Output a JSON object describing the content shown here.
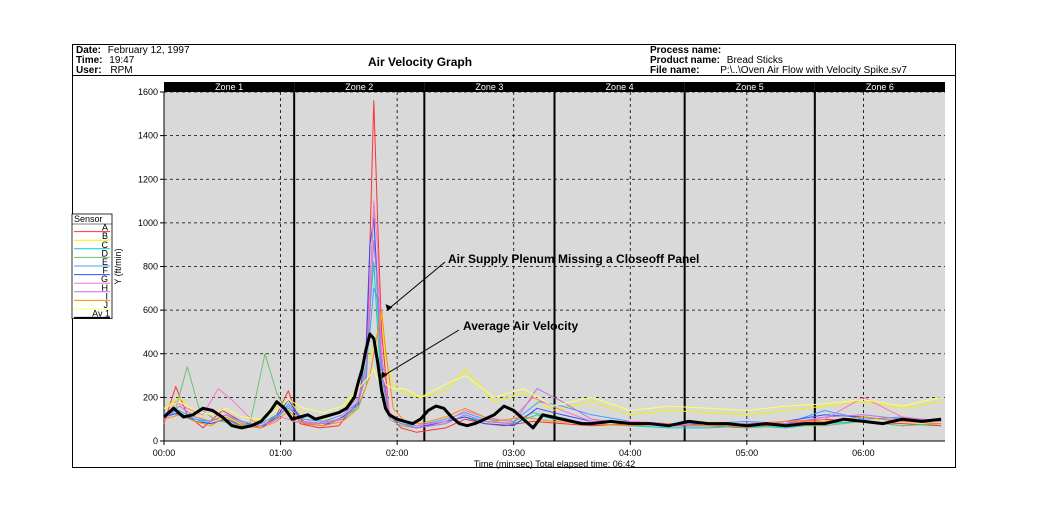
{
  "header": {
    "date_label": "Date:",
    "date": "February 12, 1997",
    "time_label": "Time:",
    "time": "19:47",
    "user_label": "User:",
    "user": "RPM",
    "title": "Air Velocity Graph",
    "process_label": "Process name:",
    "process": "",
    "product_label": "Product name:",
    "product": "Bread Sticks",
    "file_label": "File name:",
    "file": "P:\\..\\Oven Air Flow with Velocity Spike.sv7"
  },
  "chart_data": {
    "type": "line",
    "xlabel": "Time (min:sec) Total elapsed time: 06:42",
    "ylabel": "Y (ft/min)",
    "xlim": [
      0,
      402
    ],
    "ylim": [
      0,
      1600
    ],
    "grid": true,
    "x_ticks": [
      {
        "value": 0,
        "label": "00:00"
      },
      {
        "value": 60,
        "label": "01:00"
      },
      {
        "value": 120,
        "label": "02:00"
      },
      {
        "value": 180,
        "label": "03:00"
      },
      {
        "value": 240,
        "label": "04:00"
      },
      {
        "value": 300,
        "label": "05:00"
      },
      {
        "value": 360,
        "label": "06:00"
      }
    ],
    "y_ticks": [
      0,
      200,
      400,
      600,
      800,
      1000,
      1200,
      1400,
      1600
    ],
    "zones": [
      {
        "label": "Zone 1",
        "start": 0,
        "end": 67
      },
      {
        "label": "Zone 2",
        "start": 67,
        "end": 134
      },
      {
        "label": "Zone 3",
        "start": 134,
        "end": 201
      },
      {
        "label": "Zone 4",
        "start": 201,
        "end": 268
      },
      {
        "label": "Zone 5",
        "start": 268,
        "end": 335
      },
      {
        "label": "Zone 6",
        "start": 335,
        "end": 402
      }
    ],
    "legend_title": "Sensor",
    "legend_position": "left",
    "series": [
      {
        "name": "A",
        "color": "#ff3030",
        "x": [
          0,
          6,
          12,
          20,
          30,
          40,
          50,
          58,
          64,
          70,
          80,
          90,
          100,
          104,
          106,
          108,
          110,
          112,
          116,
          122,
          130,
          145,
          155,
          165,
          175,
          190,
          205,
          220,
          240,
          260,
          280,
          300,
          320,
          340,
          360,
          380,
          400
        ],
        "y": [
          80,
          250,
          120,
          60,
          140,
          90,
          60,
          120,
          230,
          80,
          60,
          70,
          180,
          300,
          900,
          1560,
          1000,
          500,
          120,
          60,
          40,
          60,
          100,
          80,
          70,
          90,
          80,
          70,
          80,
          70,
          70,
          60,
          80,
          100,
          90,
          80,
          70
        ]
      },
      {
        "name": "B",
        "color": "#f2f200",
        "x": [
          0,
          8,
          16,
          24,
          32,
          40,
          50,
          58,
          64,
          72,
          82,
          92,
          100,
          104,
          106,
          108,
          110,
          112,
          114,
          118,
          124,
          132,
          145,
          155,
          170,
          185,
          200,
          220,
          240,
          260,
          280,
          300,
          320,
          340,
          360,
          380,
          400
        ],
        "y": [
          150,
          200,
          120,
          90,
          110,
          80,
          100,
          160,
          180,
          120,
          100,
          140,
          250,
          350,
          400,
          450,
          420,
          600,
          380,
          260,
          220,
          200,
          230,
          330,
          180,
          220,
          140,
          180,
          120,
          140,
          130,
          120,
          140,
          160,
          180,
          150,
          180
        ]
      },
      {
        "name": "C",
        "color": "#00d0d0",
        "x": [
          0,
          8,
          16,
          24,
          32,
          40,
          50,
          58,
          64,
          72,
          82,
          92,
          100,
          104,
          106,
          108,
          110,
          112,
          116,
          122,
          130,
          145,
          155,
          165,
          180,
          192,
          200,
          220,
          240,
          260,
          280,
          300,
          320,
          340,
          360,
          380,
          400
        ],
        "y": [
          120,
          140,
          100,
          80,
          100,
          70,
          80,
          120,
          150,
          100,
          90,
          100,
          160,
          250,
          600,
          820,
          500,
          250,
          120,
          80,
          70,
          90,
          110,
          90,
          80,
          120,
          100,
          80,
          70,
          60,
          60,
          70,
          60,
          80,
          90,
          70,
          80
        ]
      },
      {
        "name": "D",
        "color": "#70c070",
        "x": [
          0,
          6,
          12,
          18,
          26,
          34,
          44,
          52,
          58,
          66,
          76,
          86,
          98,
          104,
          106,
          108,
          110,
          112,
          116,
          122,
          130,
          145,
          155,
          165,
          178,
          190,
          205,
          220,
          240,
          260,
          280,
          300,
          320,
          340,
          360,
          380,
          400
        ],
        "y": [
          100,
          150,
          340,
          150,
          100,
          80,
          70,
          400,
          220,
          90,
          80,
          80,
          140,
          300,
          700,
          1050,
          600,
          300,
          100,
          70,
          60,
          80,
          120,
          90,
          80,
          130,
          100,
          80,
          70,
          80,
          80,
          60,
          70,
          70,
          90,
          70,
          80
        ]
      },
      {
        "name": "E",
        "color": "#40a0ff",
        "x": [
          0,
          8,
          16,
          24,
          32,
          40,
          50,
          58,
          64,
          72,
          82,
          92,
          100,
          104,
          106,
          108,
          110,
          112,
          116,
          122,
          130,
          145,
          155,
          165,
          180,
          193,
          205,
          220,
          240,
          260,
          280,
          300,
          320,
          340,
          360,
          380,
          400
        ],
        "y": [
          130,
          120,
          100,
          90,
          120,
          90,
          70,
          100,
          170,
          100,
          90,
          120,
          180,
          350,
          500,
          700,
          650,
          300,
          120,
          90,
          70,
          100,
          130,
          100,
          90,
          180,
          160,
          120,
          90,
          80,
          80,
          90,
          80,
          140,
          100,
          110,
          90
        ]
      },
      {
        "name": "F",
        "color": "#3050ff",
        "x": [
          0,
          8,
          16,
          24,
          32,
          40,
          50,
          58,
          64,
          72,
          82,
          92,
          100,
          104,
          106,
          108,
          110,
          112,
          116,
          122,
          130,
          145,
          155,
          165,
          180,
          192,
          205,
          220,
          240,
          260,
          280,
          300,
          320,
          340,
          360,
          380,
          400
        ],
        "y": [
          110,
          130,
          90,
          80,
          100,
          70,
          60,
          110,
          190,
          80,
          70,
          110,
          170,
          420,
          900,
          1020,
          700,
          350,
          110,
          80,
          60,
          90,
          110,
          80,
          70,
          150,
          120,
          90,
          80,
          70,
          80,
          70,
          90,
          120,
          110,
          90,
          100
        ]
      },
      {
        "name": "G",
        "color": "#ff70d0",
        "x": [
          0,
          6,
          12,
          20,
          28,
          36,
          46,
          54,
          60,
          68,
          78,
          90,
          100,
          104,
          106,
          108,
          110,
          112,
          116,
          122,
          130,
          145,
          155,
          165,
          178,
          190,
          205,
          220,
          240,
          260,
          280,
          300,
          320,
          340,
          360,
          380,
          400
        ],
        "y": [
          90,
          180,
          150,
          120,
          240,
          180,
          90,
          80,
          110,
          90,
          80,
          100,
          200,
          320,
          700,
          1100,
          880,
          400,
          130,
          90,
          70,
          90,
          140,
          110,
          90,
          200,
          140,
          90,
          90,
          80,
          70,
          80,
          90,
          100,
          200,
          110,
          90
        ]
      },
      {
        "name": "H",
        "color": "#c070e0",
        "x": [
          0,
          8,
          16,
          24,
          32,
          40,
          50,
          58,
          64,
          72,
          82,
          92,
          100,
          104,
          106,
          108,
          110,
          112,
          116,
          122,
          130,
          145,
          155,
          165,
          180,
          192,
          205,
          220,
          240,
          260,
          280,
          300,
          320,
          340,
          360,
          380,
          400
        ],
        "y": [
          100,
          160,
          110,
          90,
          120,
          80,
          70,
          100,
          160,
          90,
          80,
          100,
          180,
          300,
          600,
          920,
          700,
          320,
          110,
          80,
          60,
          80,
          120,
          90,
          80,
          240,
          180,
          100,
          80,
          70,
          70,
          80,
          80,
          110,
          120,
          100,
          90
        ]
      },
      {
        "name": "I",
        "color": "#ff8c00",
        "x": [
          0,
          8,
          16,
          24,
          32,
          40,
          50,
          58,
          64,
          72,
          82,
          92,
          100,
          104,
          106,
          108,
          110,
          112,
          114,
          118,
          124,
          132,
          145,
          155,
          170,
          185,
          200,
          220,
          240,
          260,
          280,
          300,
          320,
          340,
          360,
          380,
          400
        ],
        "y": [
          100,
          120,
          90,
          70,
          110,
          70,
          60,
          90,
          140,
          80,
          70,
          90,
          150,
          250,
          300,
          400,
          500,
          600,
          420,
          150,
          90,
          80,
          110,
          150,
          90,
          110,
          90,
          80,
          70,
          80,
          70,
          70,
          90,
          90,
          110,
          90,
          80
        ]
      },
      {
        "name": "J",
        "color": "#ffff66",
        "x": [
          0,
          8,
          16,
          24,
          32,
          40,
          50,
          58,
          64,
          72,
          82,
          92,
          100,
          104,
          106,
          108,
          110,
          112,
          114,
          118,
          124,
          132,
          145,
          155,
          170,
          185,
          200,
          220,
          240,
          260,
          280,
          300,
          320,
          340,
          360,
          380,
          400
        ],
        "y": [
          150,
          180,
          140,
          120,
          150,
          110,
          100,
          140,
          190,
          150,
          130,
          160,
          240,
          280,
          300,
          330,
          280,
          320,
          260,
          240,
          240,
          200,
          260,
          300,
          200,
          240,
          160,
          200,
          140,
          160,
          150,
          140,
          160,
          170,
          190,
          160,
          200
        ]
      },
      {
        "name": "Av 1",
        "color": "#000000",
        "x": [
          0,
          5,
          10,
          15,
          20,
          25,
          30,
          35,
          40,
          45,
          50,
          55,
          58,
          62,
          66,
          70,
          74,
          78,
          82,
          86,
          90,
          94,
          98,
          100,
          102,
          104,
          106,
          108,
          110,
          112,
          114,
          116,
          118,
          120,
          124,
          128,
          132,
          136,
          140,
          144,
          148,
          152,
          156,
          160,
          165,
          170,
          175,
          180,
          185,
          190,
          195,
          200,
          205,
          210,
          215,
          220,
          230,
          240,
          250,
          260,
          270,
          280,
          290,
          300,
          310,
          320,
          330,
          340,
          350,
          360,
          370,
          380,
          390,
          400
        ],
        "y": [
          110,
          150,
          110,
          120,
          150,
          140,
          110,
          70,
          60,
          70,
          90,
          140,
          180,
          150,
          100,
          110,
          120,
          100,
          110,
          120,
          130,
          150,
          200,
          270,
          330,
          420,
          490,
          470,
          360,
          230,
          150,
          120,
          110,
          100,
          90,
          80,
          100,
          140,
          160,
          150,
          110,
          80,
          70,
          80,
          100,
          120,
          160,
          140,
          100,
          60,
          120,
          110,
          100,
          90,
          80,
          80,
          90,
          80,
          80,
          70,
          90,
          80,
          80,
          70,
          80,
          70,
          80,
          80,
          100,
          90,
          80,
          100,
          90,
          100
        ]
      }
    ],
    "annotations": [
      {
        "text": "Air Supply Plenum Missing a Closeoff Panel",
        "target_x": 113,
        "target_y": 600
      },
      {
        "text": "Average Air Velocity",
        "target_x": 111,
        "target_y": 300
      }
    ]
  }
}
